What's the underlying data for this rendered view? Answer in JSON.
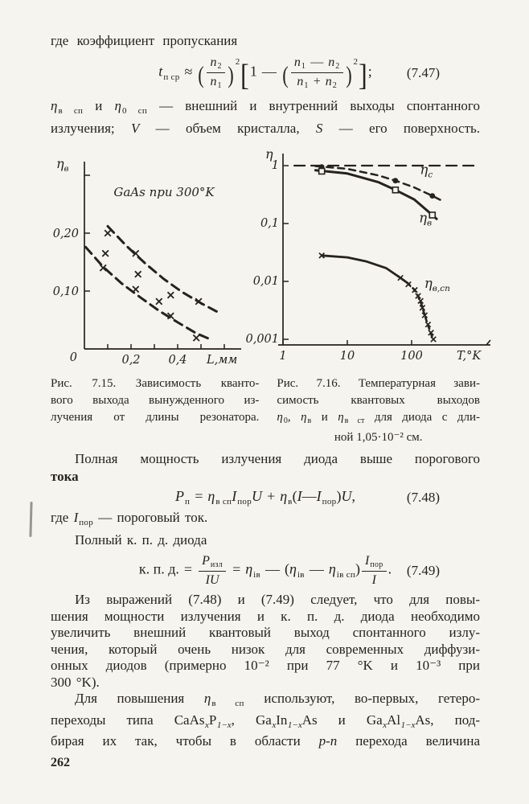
{
  "colors": {
    "paper": "#f5f4ef",
    "ink": "#26231e"
  },
  "page": {
    "number": "262"
  },
  "intro": {
    "lead": "где коэффициент пропускания"
  },
  "eq747": {
    "lhs": "t",
    "lhs_sub": "п ср",
    "rel": "≈",
    "lp": "(",
    "f1_num": "n",
    "f1_num_sub": "2",
    "f1_den": "n",
    "f1_den_sub": "1",
    "rp": ")",
    "f1_exp": "2",
    "lb": "[",
    "one": "1",
    "minus": "—",
    "lp2": "(",
    "f2na": "n",
    "f2na_sub": "1",
    "f2n_op": "—",
    "f2nb": "n",
    "f2nb_sub": "2",
    "f2da": "n",
    "f2da_sub": "1",
    "f2d_op": "+",
    "f2db": "n",
    "f2db_sub": "2",
    "rp2": ")",
    "f2_exp": "2",
    "rb": "]",
    "semi": ";",
    "tag": "(7.47)"
  },
  "para_spont": {
    "l1a": "η",
    "l1a_sub": "в сп",
    "l1b": " и ",
    "l1c": "η",
    "l1c_sub": "0 сп",
    "l1d": " — внешний и внутренний выходы спонтанного",
    "l2a": "излучения; ",
    "l2b": "V",
    "l2c": " — объем кристалла, ",
    "l2d": "S",
    "l2e": " — его поверхность."
  },
  "fig15_caption": {
    "l1": "Рис. 7.15. Зависимость кванто-",
    "l2": "вого выхода вынужденного из-",
    "l3": "лучения от длины резонатора."
  },
  "fig16_caption": {
    "l1": "Рис. 7.16. Температурная зави-",
    "l2": "симость квантовых выходов",
    "l3a": "η",
    "l3a_sub": "0",
    "l3b": ", ",
    "l3c": "η",
    "l3c_sub": "в",
    "l3d": " и ",
    "l3e": "η",
    "l3e_sub": "в ст",
    "l3f": " для диода с дли-",
    "l4": "ной 1,05·10⁻² см."
  },
  "para_power": {
    "l1": "Полная мощность излучения диода выше порогового",
    "l2": "тока"
  },
  "eq748": {
    "lhs": "P",
    "lhs_sub": "п",
    "eq": "=",
    "t1": "η",
    "t1_sub": "в сп",
    "t2": "I",
    "t2_sub": "пор",
    "t3": "U",
    "plus": "+",
    "t4": "η",
    "t4_sub": "в",
    "lp": "(",
    "t5": "I",
    "minus": "—",
    "t6": "I",
    "t6_sub": "пор",
    "rp": ")",
    "t7": "U",
    "comma": ",",
    "tag": "(7.48)"
  },
  "where_line": {
    "a": "где ",
    "b": "I",
    "b_sub": "пор",
    "c": " — пороговый ток."
  },
  "kpd_line": {
    "text": "Полный к. п. д. диода"
  },
  "eq749": {
    "lhs": "к. п. д.",
    "eq1": "=",
    "f1_num": "P",
    "f1_num_sub": "изл",
    "f1_den": "IU",
    "eq2": "=",
    "t1": "η",
    "t1_sub": "iв",
    "minus1": "—",
    "lp": "(",
    "t2": "η",
    "t2_sub": "iв",
    "minus2": "—",
    "t3": "η",
    "t3_sub": "iв сп",
    "rp": ")",
    "f2_num": "I",
    "f2_num_sub": "пор",
    "f2_den": "I",
    "dot": ".",
    "tag": "(7.49)"
  },
  "para_conclusion": {
    "l1": "Из выражений (7.48) и (7.49) следует, что для повы-",
    "l2": "шения мощности излучения и к. п. д. диода необходимо",
    "l3": "увеличить внешний квантовый выход спонтанного излу-",
    "l4": "чения, который очень низок для современных диффузи-",
    "l5": "онных диодов (примерно 10⁻² при 77 °K и 10⁻³ при",
    "l6": "300 °K)."
  },
  "para_hetero": {
    "l1a": "Для повышения ",
    "l1b": "η",
    "l1b_sub": "в сп",
    "l1c": " используют, во-первых, гетеро-",
    "l2a": "переходы типа CaAs",
    "l2a_sub": "x",
    "l2b": "P",
    "l2b_sub": "1−x",
    "l2c": ", Ga",
    "l2c_sub": "x",
    "l2d": "In",
    "l2d_sub": "1−x",
    "l2e": "As и Ga",
    "l2e_sub": "x",
    "l2f": "Al",
    "l2f_sub": "1−x",
    "l2g": "As, под-",
    "l3a": "бирая их так, чтобы в области ",
    "l3b": "p-n",
    "l3c": " перехода величина"
  },
  "chart_data": [
    {
      "figure": "Рис. 7.15",
      "type": "scatter",
      "scale": "linear",
      "title": "GaAs при 300°K",
      "xlabel": "L,мм",
      "ylabel": {
        "text": "η",
        "sub": "в"
      },
      "xlim": [
        0,
        0.66
      ],
      "ylim": [
        0,
        0.31
      ],
      "grid": false,
      "xticks": [
        {
          "v": 0.1
        },
        {
          "v": 0.2,
          "label": "0,2"
        },
        {
          "v": 0.3
        },
        {
          "v": 0.4,
          "label": "0,4"
        },
        {
          "v": 0.5
        },
        {
          "v": 0.6
        }
      ],
      "yticks": [
        {
          "v": 0.1,
          "label": "0,10"
        },
        {
          "v": 0.2,
          "label": "0,20"
        },
        {
          "v": 0.3
        }
      ],
      "origin_label": "0",
      "marker": "x",
      "points": [
        [
          0.1,
          0.2
        ],
        [
          0.09,
          0.165
        ],
        [
          0.08,
          0.14
        ],
        [
          0.22,
          0.165
        ],
        [
          0.23,
          0.129
        ],
        [
          0.22,
          0.103
        ],
        [
          0.32,
          0.082
        ],
        [
          0.37,
          0.093
        ],
        [
          0.37,
          0.057
        ],
        [
          0.49,
          0.082
        ],
        [
          0.48,
          0.019
        ]
      ],
      "curves": [
        {
          "style": "dashed",
          "points": [
            [
              0.1,
              0.212
            ],
            [
              0.18,
              0.178
            ],
            [
              0.26,
              0.148
            ],
            [
              0.34,
              0.121
            ],
            [
              0.42,
              0.098
            ],
            [
              0.5,
              0.079
            ],
            [
              0.58,
              0.062
            ]
          ]
        },
        {
          "style": "dashed",
          "points": [
            [
              0.005,
              0.176
            ],
            [
              0.08,
              0.142
            ],
            [
              0.16,
              0.113
            ],
            [
              0.24,
              0.089
            ],
            [
              0.32,
              0.066
            ],
            [
              0.4,
              0.046
            ],
            [
              0.48,
              0.027
            ],
            [
              0.55,
              0.015
            ]
          ]
        }
      ]
    },
    {
      "figure": "Рис. 7.16",
      "type": "line",
      "scale": "log-log",
      "xlabel": "T,°K",
      "ylabel": "η",
      "xlim": [
        1,
        1300
      ],
      "ylim": [
        0.001,
        1.8
      ],
      "grid": false,
      "xticks": [
        {
          "v": 1,
          "label": "1"
        },
        {
          "v": 10,
          "label": "10"
        },
        {
          "v": 100,
          "label": "100"
        }
      ],
      "yticks": [
        {
          "v": 1,
          "label": "1"
        },
        {
          "v": 0.1,
          "label": "0,1"
        },
        {
          "v": 0.01,
          "label": "0,01"
        },
        {
          "v": 0.001,
          "label": "0,001"
        }
      ],
      "series": [
        {
          "name": "unity-level",
          "style": "dashed",
          "dash": "13 8",
          "width": 2.3,
          "points": [
            [
              1.5,
              1.0
            ],
            [
              1150,
              1.0
            ]
          ]
        },
        {
          "name": "eta-c",
          "style": "dashed",
          "dash": "8 6",
          "width": 2.5,
          "marker": "circle",
          "label": {
            "text": "η",
            "sub": "c"
          },
          "label_at": [
            135,
            0.72
          ],
          "marker_points": [
            [
              4,
              0.95
            ],
            [
              56,
              0.55
            ],
            [
              210,
              0.3
            ]
          ],
          "points": [
            [
              3.2,
              0.98
            ],
            [
              10,
              0.88
            ],
            [
              30,
              0.68
            ],
            [
              56,
              0.55
            ],
            [
              110,
              0.42
            ],
            [
              210,
              0.3
            ],
            [
              290,
              0.25
            ]
          ]
        },
        {
          "name": "eta-v",
          "style": "solid",
          "width": 3,
          "marker": "square",
          "label": {
            "text": "η",
            "sub": "в"
          },
          "label_at": [
            130,
            0.105
          ],
          "marker_points": [
            [
              4,
              0.8
            ],
            [
              56,
              0.38
            ],
            [
              210,
              0.14
            ]
          ],
          "points": [
            [
              3.2,
              0.83
            ],
            [
              10,
              0.73
            ],
            [
              30,
              0.52
            ],
            [
              56,
              0.38
            ],
            [
              110,
              0.26
            ],
            [
              210,
              0.14
            ],
            [
              245,
              0.12
            ]
          ]
        },
        {
          "name": "eta-v-sp",
          "style": "solid",
          "width": 2.8,
          "marker": "x",
          "marker_points": [
            [
              4,
              0.028
            ],
            [
              67,
              0.0115
            ]
          ],
          "points": [
            [
              4,
              0.028
            ],
            [
              10,
              0.026
            ],
            [
              20,
              0.022
            ],
            [
              40,
              0.017
            ],
            [
              67,
              0.0115
            ],
            [
              85,
              0.0095
            ]
          ]
        },
        {
          "name": "eta-v-sp-tail",
          "style": "dashed",
          "dash": "5 5",
          "width": 2.6,
          "marker": "x",
          "label": {
            "text": "η",
            "sub": "в,сп"
          },
          "label_at": [
            158,
            0.0078
          ],
          "marker_points": [
            [
              89,
              0.0089
            ],
            [
              112,
              0.0071
            ],
            [
              126,
              0.0056
            ],
            [
              138,
              0.0046
            ],
            [
              147,
              0.0035
            ],
            [
              160,
              0.0026
            ],
            [
              180,
              0.0018
            ],
            [
              200,
              0.0013
            ],
            [
              218,
              0.001
            ]
          ],
          "points": [
            [
              85,
              0.0095
            ],
            [
              112,
              0.0071
            ],
            [
              130,
              0.0052
            ],
            [
              145,
              0.0038
            ],
            [
              160,
              0.0026
            ],
            [
              178,
              0.0018
            ],
            [
              198,
              0.0013
            ],
            [
              215,
              0.001
            ]
          ]
        }
      ]
    }
  ]
}
